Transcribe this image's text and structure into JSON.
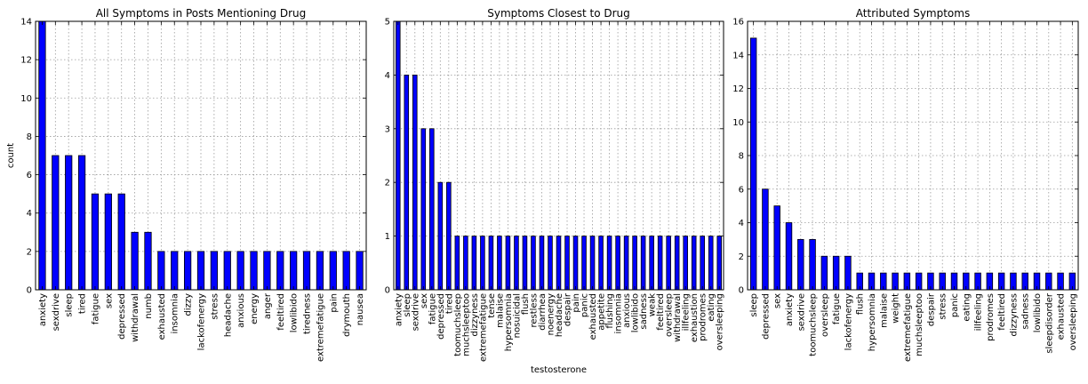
{
  "chart_data": [
    {
      "type": "bar",
      "title": "All Symptoms in Posts Mentioning Drug",
      "xlabel": "",
      "ylabel": "count",
      "ylim": [
        0,
        14
      ],
      "yticks": [
        0,
        2,
        4,
        6,
        8,
        10,
        12,
        14
      ],
      "grid": true,
      "bar_color": "#0000ff",
      "categories": [
        "anxiety",
        "sexdrive",
        "sleep",
        "tired",
        "fatigue",
        "sex",
        "depressed",
        "withdrawal",
        "numb",
        "exhausted",
        "insomnia",
        "dizzy",
        "lackofenergy",
        "stress",
        "headache",
        "anxious",
        "energy",
        "anger",
        "feeltired",
        "lowlibido",
        "tiredness",
        "extremefatigue",
        "pain",
        "drymouth",
        "nausea"
      ],
      "values": [
        14,
        7,
        7,
        7,
        5,
        5,
        5,
        3,
        3,
        2,
        2,
        2,
        2,
        2,
        2,
        2,
        2,
        2,
        2,
        2,
        2,
        2,
        2,
        2,
        2
      ]
    },
    {
      "type": "bar",
      "title": "Symptoms Closest to Drug",
      "xlabel": "testosterone",
      "ylabel": "",
      "ylim": [
        0,
        5
      ],
      "yticks": [
        0,
        1,
        2,
        3,
        4,
        5
      ],
      "grid": true,
      "bar_color": "#0000ff",
      "categories": [
        "anxiety",
        "sleep",
        "sexdrive",
        "sex",
        "fatigue",
        "depressed",
        "tired",
        "toomuchsleep",
        "muchsleeptoo",
        "dizzyness",
        "extremefatigue",
        "tense",
        "malaise",
        "hypersomnia",
        "nosuicidal",
        "flush",
        "restless",
        "diarrhea",
        "noenergy",
        "headache",
        "despair",
        "pain",
        "panic",
        "exhausted",
        "appetite",
        "flushing",
        "insomnia",
        "anxious",
        "lowlibido",
        "sadness",
        "weak",
        "feeltired",
        "oversleep",
        "withdrawal",
        "illfeeling",
        "exhaustion",
        "prodromes",
        "eating",
        "oversleeping"
      ],
      "values": [
        5,
        4,
        4,
        3,
        3,
        2,
        2,
        1,
        1,
        1,
        1,
        1,
        1,
        1,
        1,
        1,
        1,
        1,
        1,
        1,
        1,
        1,
        1,
        1,
        1,
        1,
        1,
        1,
        1,
        1,
        1,
        1,
        1,
        1,
        1,
        1,
        1,
        1,
        1
      ]
    },
    {
      "type": "bar",
      "title": "Attributed Symptoms",
      "xlabel": "",
      "ylabel": "",
      "ylim": [
        0,
        16
      ],
      "yticks": [
        0,
        2,
        4,
        6,
        8,
        10,
        12,
        14,
        16
      ],
      "grid": true,
      "bar_color": "#0000ff",
      "categories": [
        "sleep",
        "depressed",
        "sex",
        "anxiety",
        "sexdrive",
        "toomuchsleep",
        "oversleep",
        "fatigue",
        "lackofenergy",
        "flush",
        "hypersomnia",
        "malaise",
        "weight",
        "extremefatigue",
        "muchsleeptoo",
        "despair",
        "stress",
        "panic",
        "eating",
        "illfeeling",
        "prodromes",
        "feeltired",
        "dizzyness",
        "sadness",
        "lowlibido",
        "sleepdisorder",
        "exhausted",
        "oversleeping"
      ],
      "values": [
        15,
        6,
        5,
        4,
        3,
        3,
        2,
        2,
        2,
        1,
        1,
        1,
        1,
        1,
        1,
        1,
        1,
        1,
        1,
        1,
        1,
        1,
        1,
        1,
        1,
        1,
        1,
        1
      ]
    }
  ]
}
